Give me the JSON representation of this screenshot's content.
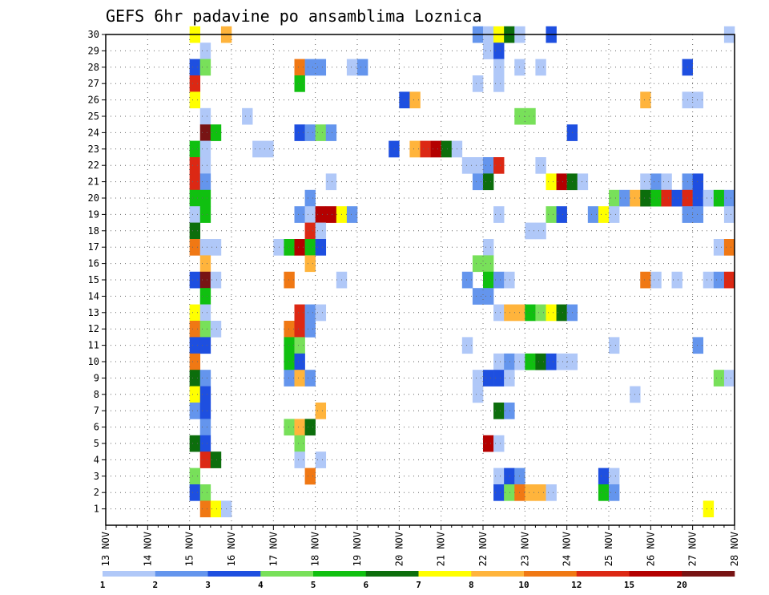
{
  "chart_data": {
    "type": "heatmap",
    "title": "GEFS 6hr padavine po ansamblima Loznica",
    "x_tick_labels": [
      "13 NOV",
      "14 NOV",
      "15 NOV",
      "16 NOV",
      "17 NOV",
      "18 NOV",
      "19 NOV",
      "20 NOV",
      "21 NOV",
      "22 NOV",
      "23 NOV",
      "24 NOV",
      "25 NOV",
      "26 NOV",
      "27 NOV",
      "28 NOV"
    ],
    "y_tick_labels": [
      "1",
      "2",
      "3",
      "4",
      "5",
      "6",
      "7",
      "8",
      "9",
      "10",
      "11",
      "12",
      "13",
      "14",
      "15",
      "16",
      "17",
      "18",
      "19",
      "20",
      "21",
      "22",
      "23",
      "24",
      "25",
      "26",
      "27",
      "28",
      "29",
      "30"
    ],
    "x_range_days": [
      13,
      28
    ],
    "y_range": [
      0,
      30
    ],
    "grid": "dotted",
    "step_hours": 6,
    "colorbar": {
      "labels": [
        "1",
        "2",
        "3",
        "4",
        "5",
        "6",
        "7",
        "8",
        "10",
        "12",
        "15",
        "20"
      ],
      "colors": [
        "#b0c8f8",
        "#6495ed",
        "#1e4fe0",
        "#78e05a",
        "#10c010",
        "#0c6e0c",
        "#ffff00",
        "#ffb43c",
        "#f07814",
        "#dc2814",
        "#b40000",
        "#781414"
      ]
    },
    "cells": [
      {
        "m": 30,
        "t": 15.0,
        "c": 6
      },
      {
        "m": 30,
        "t": 15.75,
        "c": 7
      },
      {
        "m": 30,
        "t": 21.75,
        "c": 1
      },
      {
        "m": 30,
        "t": 22.0,
        "c": 0
      },
      {
        "m": 30,
        "t": 22.25,
        "c": 6
      },
      {
        "m": 30,
        "t": 22.5,
        "c": 5
      },
      {
        "m": 30,
        "t": 22.75,
        "c": 0
      },
      {
        "m": 30,
        "t": 23.5,
        "c": 2
      },
      {
        "m": 30,
        "t": 27.75,
        "c": 0
      },
      {
        "m": 29,
        "t": 15.25,
        "c": 0
      },
      {
        "m": 29,
        "t": 22.0,
        "c": 0
      },
      {
        "m": 29,
        "t": 22.25,
        "c": 2
      },
      {
        "m": 28,
        "t": 15.0,
        "c": 2
      },
      {
        "m": 28,
        "t": 15.25,
        "c": 3
      },
      {
        "m": 28,
        "t": 17.5,
        "c": 8
      },
      {
        "m": 28,
        "t": 17.75,
        "c": 1
      },
      {
        "m": 28,
        "t": 18.0,
        "c": 1
      },
      {
        "m": 28,
        "t": 18.75,
        "c": 0
      },
      {
        "m": 28,
        "t": 19.0,
        "c": 1
      },
      {
        "m": 28,
        "t": 22.25,
        "c": 0
      },
      {
        "m": 28,
        "t": 22.75,
        "c": 0
      },
      {
        "m": 28,
        "t": 23.25,
        "c": 0
      },
      {
        "m": 28,
        "t": 26.75,
        "c": 2
      },
      {
        "m": 27,
        "t": 15.0,
        "c": 9
      },
      {
        "m": 27,
        "t": 17.5,
        "c": 4
      },
      {
        "m": 27,
        "t": 21.75,
        "c": 0
      },
      {
        "m": 27,
        "t": 22.25,
        "c": 0
      },
      {
        "m": 26,
        "t": 15.0,
        "c": 6
      },
      {
        "m": 26,
        "t": 20.0,
        "c": 2
      },
      {
        "m": 26,
        "t": 20.25,
        "c": 7
      },
      {
        "m": 26,
        "t": 25.75,
        "c": 7
      },
      {
        "m": 26,
        "t": 26.75,
        "c": 0
      },
      {
        "m": 26,
        "t": 27.0,
        "c": 0
      },
      {
        "m": 25,
        "t": 15.25,
        "c": 0
      },
      {
        "m": 25,
        "t": 16.25,
        "c": 0
      },
      {
        "m": 25,
        "t": 22.75,
        "c": 3
      },
      {
        "m": 25,
        "t": 23.0,
        "c": 3
      },
      {
        "m": 24,
        "t": 15.25,
        "c": 11
      },
      {
        "m": 24,
        "t": 15.5,
        "c": 4
      },
      {
        "m": 24,
        "t": 17.5,
        "c": 2
      },
      {
        "m": 24,
        "t": 17.75,
        "c": 1
      },
      {
        "m": 24,
        "t": 18.0,
        "c": 3
      },
      {
        "m": 24,
        "t": 18.25,
        "c": 1
      },
      {
        "m": 24,
        "t": 24.0,
        "c": 2
      },
      {
        "m": 23,
        "t": 15.0,
        "c": 4
      },
      {
        "m": 23,
        "t": 15.25,
        "c": 0
      },
      {
        "m": 23,
        "t": 16.5,
        "c": 0
      },
      {
        "m": 23,
        "t": 16.75,
        "c": 0
      },
      {
        "m": 23,
        "t": 19.75,
        "c": 2
      },
      {
        "m": 23,
        "t": 20.25,
        "c": 7
      },
      {
        "m": 23,
        "t": 20.5,
        "c": 9
      },
      {
        "m": 23,
        "t": 20.75,
        "c": 10
      },
      {
        "m": 23,
        "t": 21.0,
        "c": 5
      },
      {
        "m": 23,
        "t": 21.25,
        "c": 0
      },
      {
        "m": 22,
        "t": 15.0,
        "c": 9
      },
      {
        "m": 22,
        "t": 15.25,
        "c": 0
      },
      {
        "m": 22,
        "t": 21.5,
        "c": 0
      },
      {
        "m": 22,
        "t": 21.75,
        "c": 0
      },
      {
        "m": 22,
        "t": 22.0,
        "c": 1
      },
      {
        "m": 22,
        "t": 22.25,
        "c": 9
      },
      {
        "m": 22,
        "t": 23.25,
        "c": 0
      },
      {
        "m": 21,
        "t": 15.0,
        "c": 9
      },
      {
        "m": 21,
        "t": 15.25,
        "c": 1
      },
      {
        "m": 21,
        "t": 18.25,
        "c": 0
      },
      {
        "m": 21,
        "t": 21.75,
        "c": 1
      },
      {
        "m": 21,
        "t": 22.0,
        "c": 5
      },
      {
        "m": 21,
        "t": 23.5,
        "c": 6
      },
      {
        "m": 21,
        "t": 23.75,
        "c": 10
      },
      {
        "m": 21,
        "t": 24.0,
        "c": 5
      },
      {
        "m": 21,
        "t": 24.25,
        "c": 0
      },
      {
        "m": 21,
        "t": 25.75,
        "c": 0
      },
      {
        "m": 21,
        "t": 26.0,
        "c": 1
      },
      {
        "m": 21,
        "t": 26.25,
        "c": 0
      },
      {
        "m": 21,
        "t": 26.75,
        "c": 1
      },
      {
        "m": 21,
        "t": 27.0,
        "c": 2
      },
      {
        "m": 20,
        "t": 15.0,
        "c": 4
      },
      {
        "m": 20,
        "t": 15.25,
        "c": 4
      },
      {
        "m": 20,
        "t": 17.75,
        "c": 1
      },
      {
        "m": 20,
        "t": 25.0,
        "c": 3
      },
      {
        "m": 20,
        "t": 25.25,
        "c": 1
      },
      {
        "m": 20,
        "t": 25.5,
        "c": 7
      },
      {
        "m": 20,
        "t": 25.75,
        "c": 5
      },
      {
        "m": 20,
        "t": 26.0,
        "c": 4
      },
      {
        "m": 20,
        "t": 26.25,
        "c": 9
      },
      {
        "m": 20,
        "t": 26.5,
        "c": 2
      },
      {
        "m": 20,
        "t": 26.75,
        "c": 9
      },
      {
        "m": 20,
        "t": 27.0,
        "c": 2
      },
      {
        "m": 20,
        "t": 27.25,
        "c": 0
      },
      {
        "m": 20,
        "t": 27.5,
        "c": 4
      },
      {
        "m": 20,
        "t": 27.75,
        "c": 1
      },
      {
        "m": 19,
        "t": 15.0,
        "c": 0
      },
      {
        "m": 19,
        "t": 15.25,
        "c": 4
      },
      {
        "m": 19,
        "t": 17.5,
        "c": 1
      },
      {
        "m": 19,
        "t": 17.75,
        "c": 0
      },
      {
        "m": 19,
        "t": 18.0,
        "c": 10
      },
      {
        "m": 19,
        "t": 18.25,
        "c": 10
      },
      {
        "m": 19,
        "t": 18.5,
        "c": 6
      },
      {
        "m": 19,
        "t": 18.75,
        "c": 1
      },
      {
        "m": 19,
        "t": 22.25,
        "c": 0
      },
      {
        "m": 19,
        "t": 23.5,
        "c": 3
      },
      {
        "m": 19,
        "t": 23.75,
        "c": 2
      },
      {
        "m": 19,
        "t": 24.5,
        "c": 1
      },
      {
        "m": 19,
        "t": 24.75,
        "c": 6
      },
      {
        "m": 19,
        "t": 25.0,
        "c": 0
      },
      {
        "m": 19,
        "t": 26.75,
        "c": 1
      },
      {
        "m": 19,
        "t": 27.0,
        "c": 1
      },
      {
        "m": 19,
        "t": 27.75,
        "c": 0
      },
      {
        "m": 18,
        "t": 15.0,
        "c": 5
      },
      {
        "m": 18,
        "t": 17.75,
        "c": 9
      },
      {
        "m": 18,
        "t": 18.0,
        "c": 0
      },
      {
        "m": 18,
        "t": 23.0,
        "c": 0
      },
      {
        "m": 18,
        "t": 23.25,
        "c": 0
      },
      {
        "m": 17,
        "t": 15.0,
        "c": 8
      },
      {
        "m": 17,
        "t": 15.25,
        "c": 0
      },
      {
        "m": 17,
        "t": 15.5,
        "c": 0
      },
      {
        "m": 17,
        "t": 17.0,
        "c": 0
      },
      {
        "m": 17,
        "t": 17.25,
        "c": 4
      },
      {
        "m": 17,
        "t": 17.5,
        "c": 10
      },
      {
        "m": 17,
        "t": 17.75,
        "c": 4
      },
      {
        "m": 17,
        "t": 18.0,
        "c": 2
      },
      {
        "m": 17,
        "t": 22.0,
        "c": 0
      },
      {
        "m": 17,
        "t": 27.5,
        "c": 0
      },
      {
        "m": 17,
        "t": 27.75,
        "c": 8
      },
      {
        "m": 16,
        "t": 15.25,
        "c": 7
      },
      {
        "m": 16,
        "t": 17.75,
        "c": 7
      },
      {
        "m": 16,
        "t": 21.75,
        "c": 3
      },
      {
        "m": 16,
        "t": 22.0,
        "c": 3
      },
      {
        "m": 15,
        "t": 15.0,
        "c": 2
      },
      {
        "m": 15,
        "t": 15.25,
        "c": 11
      },
      {
        "m": 15,
        "t": 15.5,
        "c": 0
      },
      {
        "m": 15,
        "t": 17.25,
        "c": 8
      },
      {
        "m": 15,
        "t": 18.5,
        "c": 0
      },
      {
        "m": 15,
        "t": 21.5,
        "c": 1
      },
      {
        "m": 15,
        "t": 22.0,
        "c": 4
      },
      {
        "m": 15,
        "t": 22.25,
        "c": 1
      },
      {
        "m": 15,
        "t": 22.5,
        "c": 0
      },
      {
        "m": 15,
        "t": 25.75,
        "c": 8
      },
      {
        "m": 15,
        "t": 26.0,
        "c": 0
      },
      {
        "m": 15,
        "t": 26.5,
        "c": 0
      },
      {
        "m": 15,
        "t": 27.25,
        "c": 0
      },
      {
        "m": 15,
        "t": 27.5,
        "c": 1
      },
      {
        "m": 15,
        "t": 27.75,
        "c": 9
      },
      {
        "m": 14,
        "t": 15.25,
        "c": 4
      },
      {
        "m": 14,
        "t": 21.75,
        "c": 1
      },
      {
        "m": 14,
        "t": 22.0,
        "c": 1
      },
      {
        "m": 13,
        "t": 15.0,
        "c": 6
      },
      {
        "m": 13,
        "t": 15.25,
        "c": 0
      },
      {
        "m": 13,
        "t": 17.5,
        "c": 9
      },
      {
        "m": 13,
        "t": 17.75,
        "c": 1
      },
      {
        "m": 13,
        "t": 18.0,
        "c": 0
      },
      {
        "m": 13,
        "t": 22.25,
        "c": 0
      },
      {
        "m": 13,
        "t": 22.5,
        "c": 7
      },
      {
        "m": 13,
        "t": 22.75,
        "c": 7
      },
      {
        "m": 13,
        "t": 23.0,
        "c": 4
      },
      {
        "m": 13,
        "t": 23.25,
        "c": 3
      },
      {
        "m": 13,
        "t": 23.5,
        "c": 6
      },
      {
        "m": 13,
        "t": 23.75,
        "c": 5
      },
      {
        "m": 13,
        "t": 24.0,
        "c": 1
      },
      {
        "m": 12,
        "t": 15.0,
        "c": 8
      },
      {
        "m": 12,
        "t": 15.25,
        "c": 3
      },
      {
        "m": 12,
        "t": 15.5,
        "c": 0
      },
      {
        "m": 12,
        "t": 17.25,
        "c": 8
      },
      {
        "m": 12,
        "t": 17.5,
        "c": 9
      },
      {
        "m": 12,
        "t": 17.75,
        "c": 1
      },
      {
        "m": 11,
        "t": 15.0,
        "c": 2
      },
      {
        "m": 11,
        "t": 15.25,
        "c": 2
      },
      {
        "m": 11,
        "t": 17.25,
        "c": 4
      },
      {
        "m": 11,
        "t": 17.5,
        "c": 3
      },
      {
        "m": 11,
        "t": 21.5,
        "c": 0
      },
      {
        "m": 11,
        "t": 25.0,
        "c": 0
      },
      {
        "m": 11,
        "t": 27.0,
        "c": 1
      },
      {
        "m": 10,
        "t": 15.0,
        "c": 8
      },
      {
        "m": 10,
        "t": 17.25,
        "c": 4
      },
      {
        "m": 10,
        "t": 17.5,
        "c": 2
      },
      {
        "m": 10,
        "t": 22.25,
        "c": 0
      },
      {
        "m": 10,
        "t": 22.5,
        "c": 1
      },
      {
        "m": 10,
        "t": 22.75,
        "c": 0
      },
      {
        "m": 10,
        "t": 23.0,
        "c": 4
      },
      {
        "m": 10,
        "t": 23.25,
        "c": 5
      },
      {
        "m": 10,
        "t": 23.5,
        "c": 2
      },
      {
        "m": 10,
        "t": 23.75,
        "c": 0
      },
      {
        "m": 10,
        "t": 24.0,
        "c": 0
      },
      {
        "m": 9,
        "t": 15.0,
        "c": 5
      },
      {
        "m": 9,
        "t": 15.25,
        "c": 1
      },
      {
        "m": 9,
        "t": 17.25,
        "c": 1
      },
      {
        "m": 9,
        "t": 17.5,
        "c": 7
      },
      {
        "m": 9,
        "t": 17.75,
        "c": 1
      },
      {
        "m": 9,
        "t": 21.75,
        "c": 0
      },
      {
        "m": 9,
        "t": 22.0,
        "c": 2
      },
      {
        "m": 9,
        "t": 22.25,
        "c": 2
      },
      {
        "m": 9,
        "t": 22.5,
        "c": 0
      },
      {
        "m": 9,
        "t": 27.5,
        "c": 3
      },
      {
        "m": 9,
        "t": 27.75,
        "c": 0
      },
      {
        "m": 8,
        "t": 15.0,
        "c": 6
      },
      {
        "m": 8,
        "t": 15.25,
        "c": 2
      },
      {
        "m": 8,
        "t": 21.75,
        "c": 0
      },
      {
        "m": 8,
        "t": 25.5,
        "c": 0
      },
      {
        "m": 7,
        "t": 15.0,
        "c": 1
      },
      {
        "m": 7,
        "t": 15.25,
        "c": 2
      },
      {
        "m": 7,
        "t": 18.0,
        "c": 7
      },
      {
        "m": 7,
        "t": 22.25,
        "c": 5
      },
      {
        "m": 7,
        "t": 22.5,
        "c": 1
      },
      {
        "m": 6,
        "t": 15.25,
        "c": 1
      },
      {
        "m": 6,
        "t": 17.25,
        "c": 3
      },
      {
        "m": 6,
        "t": 17.5,
        "c": 7
      },
      {
        "m": 6,
        "t": 17.75,
        "c": 5
      },
      {
        "m": 5,
        "t": 15.0,
        "c": 5
      },
      {
        "m": 5,
        "t": 15.25,
        "c": 2
      },
      {
        "m": 5,
        "t": 17.5,
        "c": 3
      },
      {
        "m": 5,
        "t": 22.0,
        "c": 10
      },
      {
        "m": 5,
        "t": 22.25,
        "c": 0
      },
      {
        "m": 4,
        "t": 15.25,
        "c": 9
      },
      {
        "m": 4,
        "t": 15.5,
        "c": 5
      },
      {
        "m": 4,
        "t": 17.5,
        "c": 0
      },
      {
        "m": 4,
        "t": 18.0,
        "c": 0
      },
      {
        "m": 3,
        "t": 15.0,
        "c": 3
      },
      {
        "m": 3,
        "t": 17.75,
        "c": 8
      },
      {
        "m": 3,
        "t": 22.25,
        "c": 0
      },
      {
        "m": 3,
        "t": 22.5,
        "c": 2
      },
      {
        "m": 3,
        "t": 22.75,
        "c": 1
      },
      {
        "m": 3,
        "t": 24.75,
        "c": 2
      },
      {
        "m": 3,
        "t": 25.0,
        "c": 0
      },
      {
        "m": 2,
        "t": 15.0,
        "c": 2
      },
      {
        "m": 2,
        "t": 15.25,
        "c": 3
      },
      {
        "m": 2,
        "t": 22.25,
        "c": 2
      },
      {
        "m": 2,
        "t": 22.5,
        "c": 3
      },
      {
        "m": 2,
        "t": 22.75,
        "c": 8
      },
      {
        "m": 2,
        "t": 23.0,
        "c": 7
      },
      {
        "m": 2,
        "t": 23.25,
        "c": 7
      },
      {
        "m": 2,
        "t": 23.5,
        "c": 0
      },
      {
        "m": 2,
        "t": 24.75,
        "c": 4
      },
      {
        "m": 2,
        "t": 25.0,
        "c": 1
      },
      {
        "m": 1,
        "t": 15.25,
        "c": 8
      },
      {
        "m": 1,
        "t": 15.5,
        "c": 6
      },
      {
        "m": 1,
        "t": 15.75,
        "c": 0
      },
      {
        "m": 1,
        "t": 27.25,
        "c": 6
      }
    ]
  }
}
